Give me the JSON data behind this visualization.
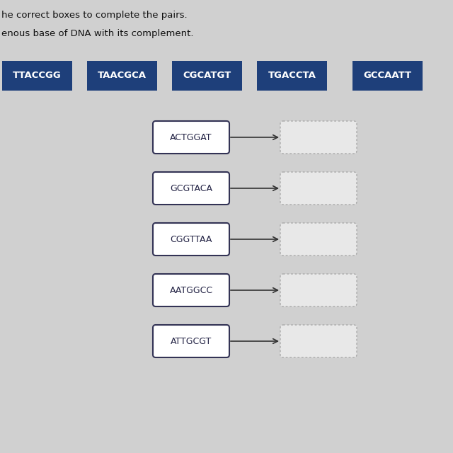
{
  "title_line1": "he correct boxes to complete the pairs.",
  "title_line2": "enous base of DNA with its complement.",
  "background_color": "#d0d0d0",
  "inner_background": "#dcdcdc",
  "blue_boxes": [
    "TTACCGG",
    "TAACGCA",
    "CGCATGT",
    "TGACCTA",
    "GCCAATT"
  ],
  "blue_box_color": "#1e3f7a",
  "blue_box_text_color": "#ffffff",
  "source_boxes": [
    "ACTGGAT",
    "GCGTACA",
    "CGGTTAA",
    "AATGGCC",
    "ATTGCGT"
  ],
  "source_box_color": "#ffffff",
  "source_box_text_color": "#222244",
  "target_box_color": "#e8e8e8",
  "target_box_border_color": "#aaaaaa",
  "arrow_color": "#333333",
  "fig_width": 6.4,
  "fig_height": 6.4,
  "dpi": 100
}
